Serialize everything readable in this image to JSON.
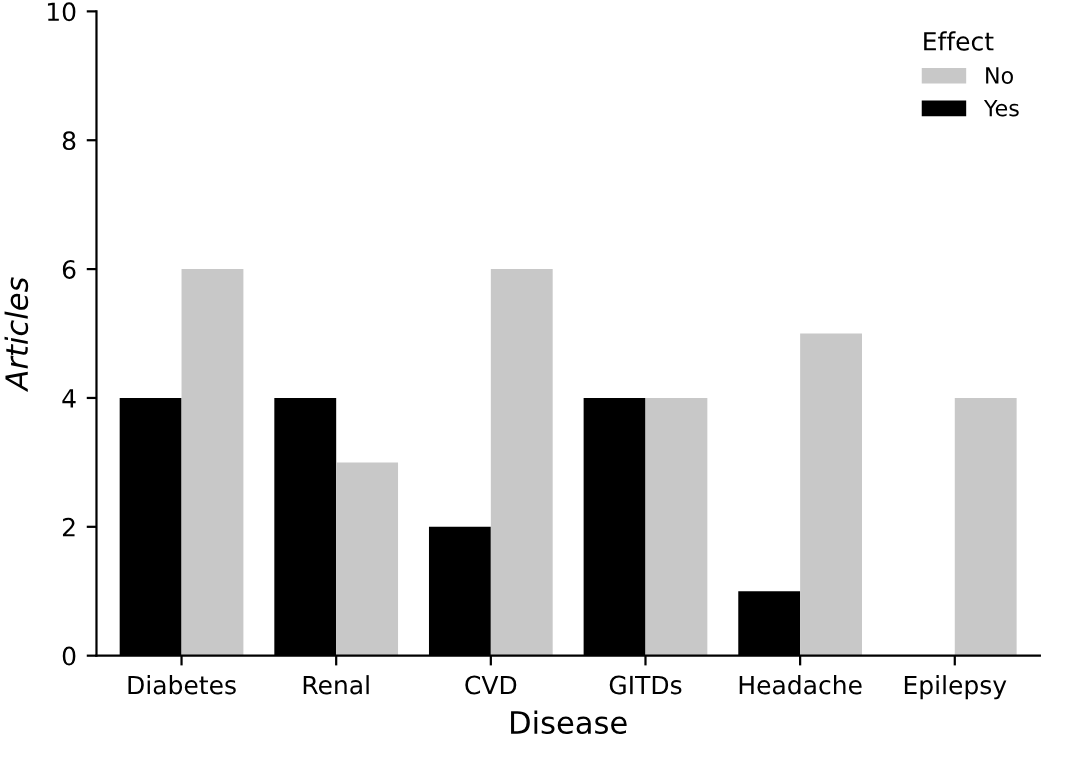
{
  "chart_data": {
    "type": "bar",
    "xlabel": "Disease",
    "ylabel": "Articles",
    "legend_title": "Effect",
    "legend": "top right",
    "categories": [
      "Diabetes",
      "Renal",
      "CVD",
      "GITDs",
      "Headache",
      "Epilepsy"
    ],
    "series": [
      {
        "name": "Yes",
        "color": "#000000",
        "values": [
          4,
          4,
          2,
          4,
          1,
          0
        ]
      },
      {
        "name": "No",
        "color": "#c8c8c8",
        "values": [
          6,
          3,
          6,
          4,
          5,
          4
        ]
      }
    ],
    "ylim": [
      0,
      10
    ],
    "yticks": [
      0,
      2,
      4,
      6,
      8,
      10
    ],
    "grid": false
  }
}
